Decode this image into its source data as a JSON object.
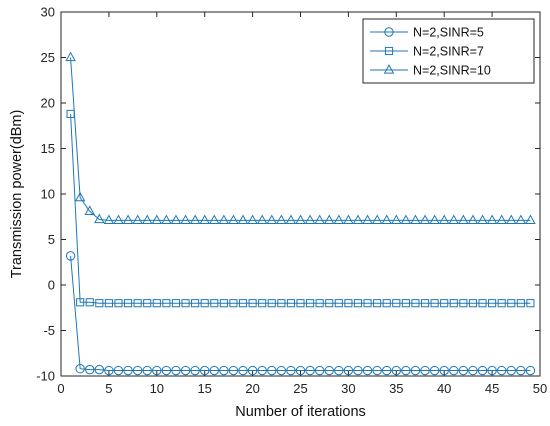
{
  "chart_data": {
    "type": "line",
    "title": "",
    "xlabel": "Number of iterations",
    "ylabel": "Transmission power(dBm)",
    "xlim": [
      0,
      50
    ],
    "ylim": [
      -10,
      30
    ],
    "xticks": [
      0,
      5,
      10,
      15,
      20,
      25,
      30,
      35,
      40,
      45,
      50
    ],
    "yticks": [
      -10,
      -5,
      0,
      5,
      10,
      15,
      20,
      25,
      30
    ],
    "grid": false,
    "legend_position": "top-right",
    "colors": {
      "series": "#1f77b4",
      "axis": "#262626"
    },
    "series": [
      {
        "name": "N=2,SINR=5",
        "marker": "circle",
        "x": [
          1,
          2,
          3,
          4,
          5,
          6,
          7,
          8,
          9,
          10,
          11,
          12,
          13,
          14,
          15,
          16,
          17,
          18,
          19,
          20,
          21,
          22,
          23,
          24,
          25,
          26,
          27,
          28,
          29,
          30,
          31,
          32,
          33,
          34,
          35,
          36,
          37,
          38,
          39,
          40,
          41,
          42,
          43,
          44,
          45,
          46,
          47,
          48,
          49
        ],
        "values": [
          3.2,
          -9.2,
          -9.3,
          -9.3,
          -9.4,
          -9.4,
          -9.4,
          -9.4,
          -9.4,
          -9.4,
          -9.4,
          -9.4,
          -9.4,
          -9.4,
          -9.4,
          -9.4,
          -9.4,
          -9.4,
          -9.4,
          -9.4,
          -9.4,
          -9.4,
          -9.4,
          -9.4,
          -9.4,
          -9.4,
          -9.4,
          -9.4,
          -9.4,
          -9.4,
          -9.4,
          -9.4,
          -9.4,
          -9.4,
          -9.4,
          -9.4,
          -9.4,
          -9.4,
          -9.4,
          -9.4,
          -9.4,
          -9.4,
          -9.4,
          -9.4,
          -9.4,
          -9.4,
          -9.4,
          -9.4,
          -9.4
        ]
      },
      {
        "name": "N=2,SINR=7",
        "marker": "square",
        "x": [
          1,
          2,
          3,
          4,
          5,
          6,
          7,
          8,
          9,
          10,
          11,
          12,
          13,
          14,
          15,
          16,
          17,
          18,
          19,
          20,
          21,
          22,
          23,
          24,
          25,
          26,
          27,
          28,
          29,
          30,
          31,
          32,
          33,
          34,
          35,
          36,
          37,
          38,
          39,
          40,
          41,
          42,
          43,
          44,
          45,
          46,
          47,
          48,
          49
        ],
        "values": [
          18.8,
          -1.9,
          -1.9,
          -2.0,
          -2.0,
          -2.0,
          -2.0,
          -2.0,
          -2.0,
          -2.0,
          -2.0,
          -2.0,
          -2.0,
          -2.0,
          -2.0,
          -2.0,
          -2.0,
          -2.0,
          -2.0,
          -2.0,
          -2.0,
          -2.0,
          -2.0,
          -2.0,
          -2.0,
          -2.0,
          -2.0,
          -2.0,
          -2.0,
          -2.0,
          -2.0,
          -2.0,
          -2.0,
          -2.0,
          -2.0,
          -2.0,
          -2.0,
          -2.0,
          -2.0,
          -2.0,
          -2.0,
          -2.0,
          -2.0,
          -2.0,
          -2.0,
          -2.0,
          -2.0,
          -2.0,
          -2.0
        ]
      },
      {
        "name": "N=2,SINR=10",
        "marker": "triangle",
        "x": [
          1,
          2,
          3,
          4,
          5,
          6,
          7,
          8,
          9,
          10,
          11,
          12,
          13,
          14,
          15,
          16,
          17,
          18,
          19,
          20,
          21,
          22,
          23,
          24,
          25,
          26,
          27,
          28,
          29,
          30,
          31,
          32,
          33,
          34,
          35,
          36,
          37,
          38,
          39,
          40,
          41,
          42,
          43,
          44,
          45,
          46,
          47,
          48,
          49
        ],
        "values": [
          25.0,
          9.6,
          8.1,
          7.2,
          7.1,
          7.1,
          7.1,
          7.1,
          7.1,
          7.1,
          7.1,
          7.1,
          7.1,
          7.1,
          7.1,
          7.1,
          7.1,
          7.1,
          7.1,
          7.1,
          7.1,
          7.1,
          7.1,
          7.1,
          7.1,
          7.1,
          7.1,
          7.1,
          7.1,
          7.1,
          7.1,
          7.1,
          7.1,
          7.1,
          7.1,
          7.1,
          7.1,
          7.1,
          7.1,
          7.1,
          7.1,
          7.1,
          7.1,
          7.1,
          7.1,
          7.1,
          7.1,
          7.1,
          7.1
        ]
      }
    ]
  }
}
